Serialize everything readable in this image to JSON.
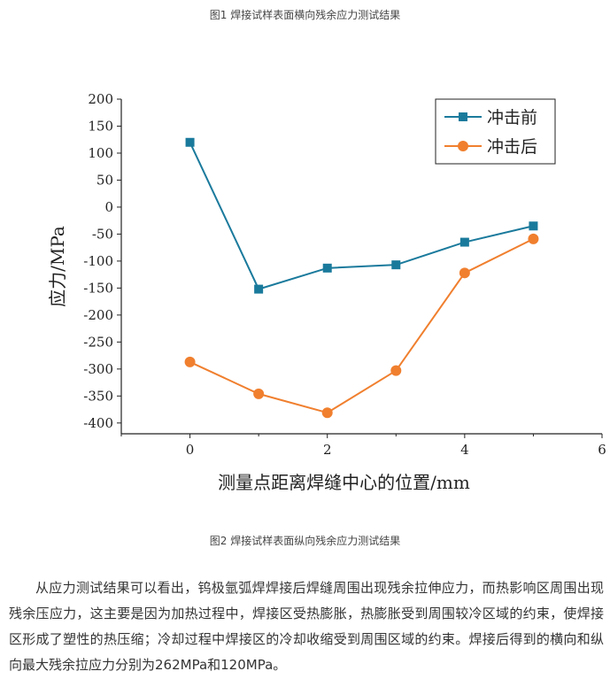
{
  "caption_top": "图1 焊接试样表面横向残余应力测试结果",
  "caption_bottom": "图2 焊接试样表面纵向残余应力测试结果",
  "paragraph": "从应力测试结果可以看出，钨极氩弧焊焊接后焊缝周围出现残余拉伸应力，而热影响区周围出现残余压应力，这主要是因为加热过程中，焊接区受热膨胀，热膨胀受到周围较冷区域的约束，使焊接区形成了塑性的热压缩；冷却过程中焊接区的冷却收缩受到周围区域的约束。焊接后得到的横向和纵向最大残余拉应力分别为262MPa和120MPa。",
  "chart_data": {
    "type": "line",
    "title": "",
    "xlabel": "测量点距离焊缝中心的位置/mm",
    "ylabel": "应力/MPa",
    "xlim": [
      -1,
      6
    ],
    "ylim": [
      -420,
      200
    ],
    "xticks": [
      "0",
      "2",
      "4",
      "6"
    ],
    "yticks": [
      "200",
      "150",
      "100",
      "50",
      "0",
      "-50",
      "-100",
      "-150",
      "-200",
      "-250",
      "-300",
      "-350",
      "-400"
    ],
    "grid": false,
    "legend_position": "top-right",
    "series": [
      {
        "name": "冲击前",
        "color": "#1a7a9c",
        "marker": "square",
        "x": [
          0,
          1,
          2,
          3,
          4,
          5
        ],
        "y": [
          120,
          -152,
          -113,
          -107,
          -65,
          -35
        ]
      },
      {
        "name": "冲击后",
        "color": "#f07f2e",
        "marker": "circle",
        "x": [
          0,
          1,
          2,
          3,
          4,
          5
        ],
        "y": [
          -287,
          -346,
          -381,
          -303,
          -122,
          -59
        ]
      }
    ]
  }
}
